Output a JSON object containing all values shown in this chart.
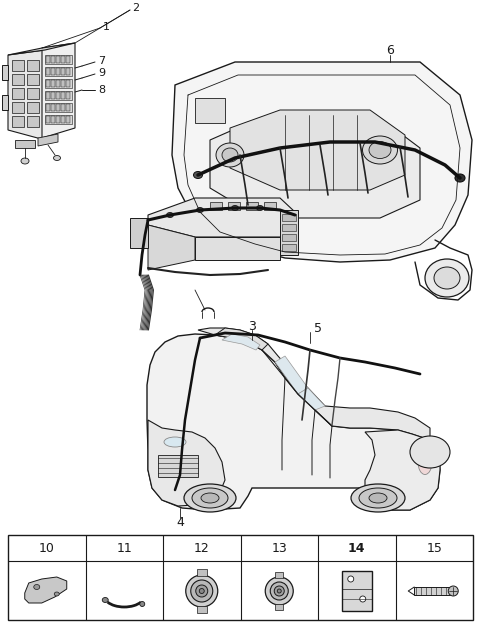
{
  "bg_color": "#ffffff",
  "line_color": "#1a1a1a",
  "table_labels": [
    "10",
    "11",
    "12",
    "13",
    "14",
    "15"
  ],
  "fig_width": 4.8,
  "fig_height": 6.25,
  "dpi": 100
}
